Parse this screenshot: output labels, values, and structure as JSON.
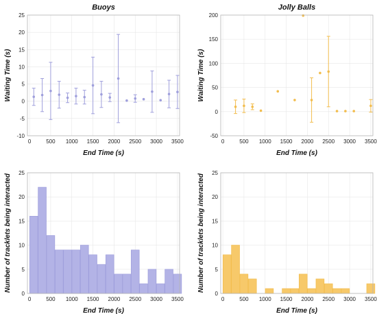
{
  "colors": {
    "buoys": "#9f9fdc",
    "buoys_fill": "#b3b3e6",
    "jolly": "#f2bd4e",
    "jolly_fill": "#f7c96a"
  },
  "chart_data": [
    {
      "type": "scatter",
      "title": "Buoys",
      "xlabel": "End Time (s)",
      "ylabel": "Waiting Time (s)",
      "xlim": [
        -50,
        3550
      ],
      "ylim": [
        -10,
        25
      ],
      "xticks": [
        0,
        500,
        1000,
        1500,
        2000,
        2500,
        3000,
        3500
      ],
      "yticks": [
        -10,
        -5,
        0,
        5,
        10,
        15,
        20,
        25
      ],
      "grid": true,
      "error_bars": true,
      "points": [
        {
          "x": 100,
          "y": 1.3,
          "err": 2.5
        },
        {
          "x": 300,
          "y": 1.8,
          "err": 4.8
        },
        {
          "x": 500,
          "y": 3.0,
          "err": 8.3
        },
        {
          "x": 700,
          "y": 1.9,
          "err": 3.9
        },
        {
          "x": 900,
          "y": 1.0,
          "err": 1.4
        },
        {
          "x": 1100,
          "y": 1.5,
          "err": 2.3
        },
        {
          "x": 1300,
          "y": 1.2,
          "err": 2.0
        },
        {
          "x": 1500,
          "y": 4.6,
          "err": 8.2
        },
        {
          "x": 1700,
          "y": 2.0,
          "err": 3.8
        },
        {
          "x": 1900,
          "y": 1.1,
          "err": 1.2
        },
        {
          "x": 2100,
          "y": 6.6,
          "err": 12.8
        },
        {
          "x": 2300,
          "y": 0.2,
          "err": 0
        },
        {
          "x": 2500,
          "y": 0.8,
          "err": 1.1
        },
        {
          "x": 2700,
          "y": 0.6,
          "err": 0
        },
        {
          "x": 2900,
          "y": 2.8,
          "err": 6.0
        },
        {
          "x": 3100,
          "y": 0.3,
          "err": 0
        },
        {
          "x": 3300,
          "y": 2.1,
          "err": 4.0
        },
        {
          "x": 3500,
          "y": 2.7,
          "err": 4.8
        }
      ]
    },
    {
      "type": "scatter",
      "title": "Jolly Balls",
      "xlabel": "End Time (s)",
      "ylabel": "Waiting Time (s)",
      "xlim": [
        -50,
        3550
      ],
      "ylim": [
        -50,
        200
      ],
      "xticks": [
        0,
        500,
        1000,
        1500,
        2000,
        2500,
        3000,
        3500
      ],
      "yticks": [
        -50,
        0,
        50,
        100,
        150,
        200
      ],
      "grid": true,
      "error_bars": true,
      "points": [
        {
          "x": 300,
          "y": 10,
          "err": 14
        },
        {
          "x": 500,
          "y": 12,
          "err": 14
        },
        {
          "x": 700,
          "y": 10,
          "err": 6
        },
        {
          "x": 900,
          "y": 2,
          "err": 0
        },
        {
          "x": 1300,
          "y": 42,
          "err": 0
        },
        {
          "x": 1700,
          "y": 24,
          "err": 0
        },
        {
          "x": 1900,
          "y": 199,
          "err": 0
        },
        {
          "x": 2100,
          "y": 24,
          "err": 46
        },
        {
          "x": 2300,
          "y": 80,
          "err": 0
        },
        {
          "x": 2500,
          "y": 83,
          "err": 73
        },
        {
          "x": 2700,
          "y": 1,
          "err": 0
        },
        {
          "x": 2900,
          "y": 1,
          "err": 0
        },
        {
          "x": 3100,
          "y": 1,
          "err": 0
        },
        {
          "x": 3500,
          "y": 12,
          "err": 13
        }
      ]
    },
    {
      "type": "bar",
      "xlabel": "End Time (s)",
      "ylabel": "Number of tracklets being interacted",
      "xlim": [
        -50,
        3550
      ],
      "ylim": [
        0,
        25
      ],
      "xticks": [
        0,
        500,
        1000,
        1500,
        2000,
        2500,
        3000,
        3500
      ],
      "yticks": [
        0,
        5,
        10,
        15,
        20,
        25
      ],
      "grid": true,
      "x": [
        100,
        300,
        500,
        700,
        900,
        1100,
        1300,
        1500,
        1700,
        1900,
        2100,
        2300,
        2500,
        2700,
        2900,
        3100,
        3300,
        3500
      ],
      "values": [
        16,
        22,
        12,
        9,
        9,
        9,
        10,
        8,
        6,
        8,
        4,
        4,
        9,
        2,
        5,
        2,
        5,
        4
      ]
    },
    {
      "type": "bar",
      "xlabel": "End Time (s)",
      "ylabel": "Number of tracklets being interacted",
      "xlim": [
        -50,
        3550
      ],
      "ylim": [
        0,
        25
      ],
      "xticks": [
        0,
        500,
        1000,
        1500,
        2000,
        2500,
        3000,
        3500
      ],
      "yticks": [
        0,
        5,
        10,
        15,
        20,
        25
      ],
      "grid": true,
      "x": [
        100,
        300,
        500,
        700,
        900,
        1100,
        1300,
        1500,
        1700,
        1900,
        2100,
        2300,
        2500,
        2700,
        2900,
        3100,
        3300,
        3500
      ],
      "values": [
        8,
        10,
        4,
        3,
        0,
        1,
        0,
        1,
        1,
        4,
        1,
        3,
        2,
        1,
        1,
        0,
        0,
        2
      ]
    }
  ]
}
